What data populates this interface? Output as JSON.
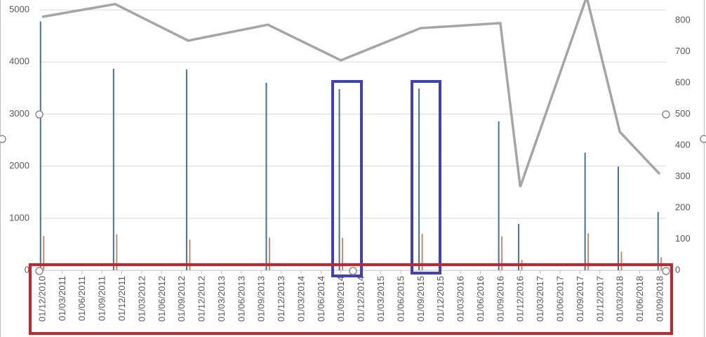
{
  "chart_data": {
    "type": "bar-line",
    "x": [
      "01/12/2010",
      "01/11/2011",
      "01/10/2012",
      "01/10/2013",
      "01/09/2014",
      "01/09/2015",
      "01/09/2016",
      "01/12/2016",
      "01/10/2017",
      "01/03/2018",
      "01/09/2018"
    ],
    "series": [
      {
        "type": "bar",
        "color": "#44729d",
        "values": [
          4780,
          3870,
          3855,
          3600,
          3480,
          3490,
          2860,
          890,
          2260,
          1990,
          1120
        ]
      },
      {
        "type": "bar",
        "color": "#c88a68",
        "values": [
          660,
          690,
          590,
          630,
          620,
          700,
          650,
          200,
          710,
          360,
          250
        ]
      },
      {
        "type": "line",
        "axis": "y2",
        "color": "#a5a5a5",
        "values": [
          811,
          852,
          735,
          786,
          672,
          775,
          791,
          267,
          875,
          443,
          308
        ]
      }
    ],
    "xlim": [
      "01/12/2010",
      "01/09/2018"
    ],
    "xticks": [
      "01/12/2010",
      "01/03/2011",
      "01/06/2011",
      "01/09/2011",
      "01/12/2011",
      "01/03/2012",
      "01/06/2012",
      "01/09/2012",
      "01/12/2012",
      "01/03/2013",
      "01/06/2013",
      "01/09/2013",
      "01/12/2013",
      "01/03/2014",
      "01/06/2014",
      "01/09/2014",
      "01/12/2014",
      "01/03/2015",
      "01/06/2015",
      "01/09/2015",
      "01/12/2015",
      "01/03/2016",
      "01/06/2016",
      "01/09/2016",
      "01/12/2016",
      "01/03/2017",
      "01/06/2017",
      "01/09/2017",
      "01/12/2017",
      "01/03/2018",
      "01/06/2018",
      "01/09/2018"
    ],
    "ylim": [
      0,
      5190
    ],
    "yticks": [
      0,
      1000,
      2000,
      3000,
      4000,
      5000
    ],
    "y2lim": [
      0,
      865
    ],
    "y2ticks": [
      0,
      100,
      200,
      300,
      400,
      500,
      600,
      700,
      800
    ],
    "grid": true
  }
}
